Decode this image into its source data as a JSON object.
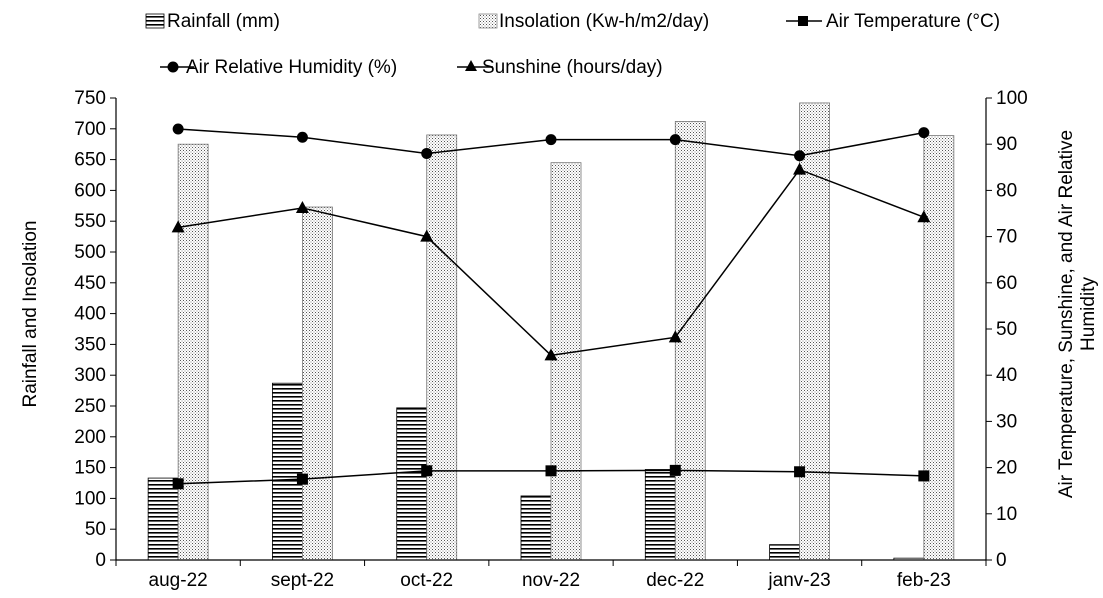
{
  "chart_data": {
    "type": "bar",
    "categories": [
      "aug-22",
      "sept-22",
      "oct-22",
      "nov-22",
      "dec-22",
      "janv-23",
      "feb-23"
    ],
    "bar_series": [
      {
        "name": "Rainfall (mm)",
        "axis": "left",
        "pattern": "horizontal-lines",
        "values": [
          133,
          287,
          247,
          104,
          147,
          25,
          3
        ]
      },
      {
        "name": "Insolation (Kw-h/m2/day)",
        "axis": "left",
        "pattern": "dots",
        "values": [
          675,
          573,
          690,
          645,
          712,
          742,
          689
        ]
      }
    ],
    "line_series": [
      {
        "name": "Air Temperature (°C)",
        "axis": "right",
        "marker": "square",
        "values": [
          16.5,
          17.5,
          19.3,
          19.3,
          19.4,
          19.1,
          18.2
        ]
      },
      {
        "name": "Air Relative Humidity (%)",
        "axis": "right",
        "marker": "circle",
        "values": [
          93.3,
          91.5,
          88.0,
          91.0,
          91.0,
          87.5,
          92.5
        ]
      },
      {
        "name": "Sunshine (hours/day)",
        "axis": "right",
        "marker": "triangle",
        "values": [
          72.0,
          76.2,
          70.0,
          44.3,
          48.2,
          84.5,
          74.2
        ]
      }
    ],
    "ylabel": "Rainfall and Insolation",
    "y2label_lines": [
      "Air Temperature, Sunshine, and Air Relative",
      "Humidity"
    ],
    "ylim": [
      0,
      750
    ],
    "ytick_step": 50,
    "y2lim": [
      0,
      100
    ],
    "y2tick_step": 10,
    "legend_position": "top",
    "grid": false,
    "colors": {
      "bars_edge": "#000000",
      "lines": "#000000",
      "background": "#ffffff"
    }
  }
}
